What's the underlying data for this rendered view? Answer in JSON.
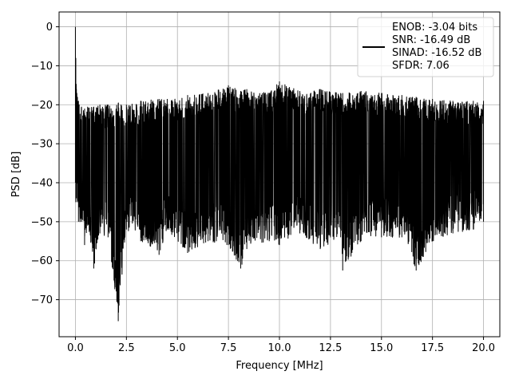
{
  "chart_data": {
    "type": "line",
    "title": "",
    "xlabel": "Frequency [MHz]",
    "ylabel": "PSD [dB]",
    "xlim": [
      -0.8,
      20.8
    ],
    "ylim": [
      -79.5,
      3.8
    ],
    "xticks": [
      0.0,
      2.5,
      5.0,
      7.5,
      10.0,
      12.5,
      15.0,
      17.5,
      20.0
    ],
    "xtick_labels": [
      "0.0",
      "2.5",
      "5.0",
      "7.5",
      "10.0",
      "12.5",
      "15.0",
      "17.5",
      "20.0"
    ],
    "yticks": [
      0,
      -10,
      -20,
      -30,
      -40,
      -50,
      -60,
      -70
    ],
    "ytick_labels": [
      "0",
      "−10",
      "−20",
      "−30",
      "−40",
      "−50",
      "−60",
      "−70"
    ],
    "grid": true,
    "legend_position": "top-right",
    "legend_lines": [
      "ENOB: -3.04 bits",
      "SNR: -16.49 dB",
      "SINAD: -16.52 dB",
      "SFDR: 7.06"
    ],
    "series": [
      {
        "color": "#000000",
        "x": [
          0.0,
          0.02,
          0.05,
          0.1,
          0.15,
          0.3,
          0.45,
          0.6,
          0.9,
          1.2,
          1.6,
          2.1,
          2.5,
          3.2,
          4.1,
          4.5,
          5.5,
          6.5,
          7.5,
          8.1,
          8.4,
          9.5,
          10.0,
          11.0,
          12.0,
          13.0,
          13.1,
          14.0,
          15.0,
          16.0,
          16.7,
          17.5,
          18.5,
          19.5,
          20.0
        ],
        "upper": [
          0.0,
          -8.0,
          -16.0,
          -18.0,
          -19.0,
          -20.5,
          -21.0,
          -20.5,
          -20.5,
          -20.0,
          -20.0,
          -19.5,
          -20.0,
          -19.0,
          -18.5,
          -18.5,
          -17.5,
          -17.0,
          -15.0,
          -16.5,
          -16.0,
          -17.0,
          -14.0,
          -16.5,
          -16.0,
          -17.0,
          -17.0,
          -16.5,
          -17.0,
          -17.5,
          -18.0,
          -18.5,
          -19.0,
          -19.0,
          -19.0
        ],
        "lower": [
          -40.0,
          -45.0,
          -44.0,
          -45.0,
          -50.0,
          -50.0,
          -56.0,
          -51.0,
          -62.0,
          -53.0,
          -54.0,
          -75.5,
          -52.0,
          -55.0,
          -58.5,
          -52.0,
          -58.0,
          -55.0,
          -56.0,
          -62.0,
          -57.0,
          -55.0,
          -56.0,
          -53.0,
          -57.0,
          -54.0,
          -62.5,
          -55.0,
          -54.0,
          -54.0,
          -62.5,
          -55.0,
          -53.0,
          -52.0,
          -50.0
        ]
      }
    ]
  }
}
